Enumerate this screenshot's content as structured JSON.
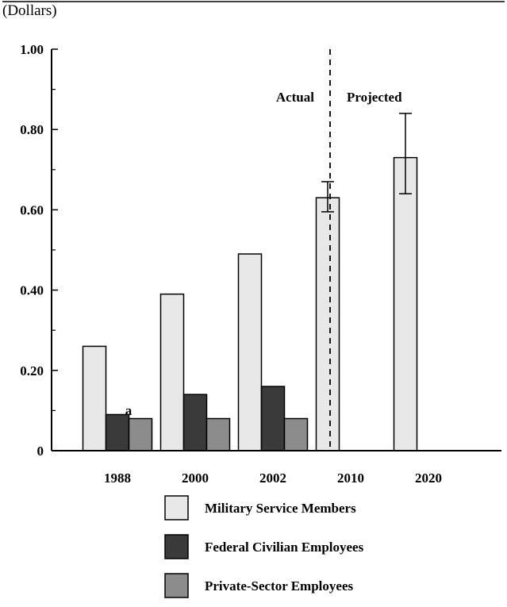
{
  "chart_data": {
    "type": "bar",
    "unit_label": "(Dollars)",
    "categories": [
      "1988",
      "2000",
      "2002",
      "2010",
      "2020"
    ],
    "ylim": [
      0,
      1.0
    ],
    "yticks": [
      "0",
      "0.20",
      "0.40",
      "0.60",
      "0.80",
      "1.00"
    ],
    "yticks_values": [
      0,
      0.2,
      0.4,
      0.6,
      0.8,
      1.0
    ],
    "series": [
      {
        "name": "Military Service Members",
        "color": "#e8e8e8",
        "values": [
          0.26,
          0.39,
          0.49,
          0.63,
          0.73
        ]
      },
      {
        "name": "Federal Civilian Employees",
        "color": "#3a3a3a",
        "values": [
          0.09,
          0.14,
          0.16,
          null,
          null
        ]
      },
      {
        "name": "Private-Sector Employees",
        "color": "#8c8c8c",
        "values": [
          0.08,
          0.08,
          0.08,
          null,
          null
        ]
      }
    ],
    "error_bars": [
      {
        "category": "2010",
        "low": 0.595,
        "high": 0.67
      },
      {
        "category": "2020",
        "low": 0.64,
        "high": 0.84
      }
    ],
    "annotations": {
      "actual_label": "Actual",
      "projected_label": "Projected",
      "footnote_marker": "a"
    },
    "grid": false,
    "legend_position": "bottom"
  }
}
